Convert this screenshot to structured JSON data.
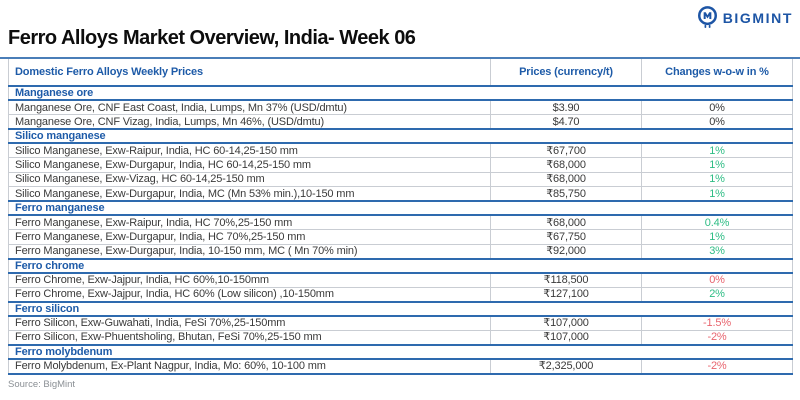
{
  "header": {
    "title": "Ferro Alloys Market Overview, India- Week 06",
    "brand": "BIGMINT"
  },
  "colors": {
    "accent_blue": "#1E5BA8",
    "logo_blue": "#1D55A5",
    "positive_green": "#2EBD85",
    "negative_red": "#E8646E",
    "neutral_text": "#3A3A3A"
  },
  "table": {
    "columns": [
      "Domestic Ferro Alloys Weekly Prices",
      "Prices (currency/t)",
      "Changes w-o-w in %"
    ],
    "sections": [
      {
        "name": "Manganese ore",
        "rows": [
          {
            "product": "Manganese Ore, CNF East Coast, India, Lumps, Mn 37% (USD/dmtu)",
            "price": "$3.90",
            "change": "0%",
            "change_color": "neutral"
          },
          {
            "product": "Manganese Ore, CNF Vizag, India, Lumps, Mn 46%, (USD/dmtu)",
            "price": "$4.70",
            "change": "0%",
            "change_color": "neutral"
          }
        ]
      },
      {
        "name": "Silico manganese",
        "rows": [
          {
            "product": "Silico Manganese, Exw-Raipur, India, HC 60-14,25-150 mm",
            "price": "₹67,700",
            "change": "1%",
            "change_color": "green"
          },
          {
            "product": "Silico Manganese, Exw-Durgapur, India, HC 60-14,25-150 mm",
            "price": "₹68,000",
            "change": "1%",
            "change_color": "green"
          },
          {
            "product": "Silico Manganese, Exw-Vizag, HC 60-14,25-150 mm",
            "price": "₹68,000",
            "change": "1%",
            "change_color": "green"
          },
          {
            "product": "Silico Manganese, Exw-Durgapur, India, MC (Mn 53% min.),10-150 mm",
            "price": "₹85,750",
            "change": "1%",
            "change_color": "green"
          }
        ]
      },
      {
        "name": "Ferro manganese",
        "rows": [
          {
            "product": "Ferro Manganese, Exw-Raipur, India, HC 70%,25-150 mm",
            "price": "₹68,000",
            "change": "0.4%",
            "change_color": "green"
          },
          {
            "product": "Ferro Manganese, Exw-Durgapur, India, HC 70%,25-150 mm",
            "price": "₹67,750",
            "change": "1%",
            "change_color": "green"
          },
          {
            "product": "Ferro Manganese, Exw-Durgapur, India, 10-150 mm, MC ( Mn 70% min)",
            "price": "₹92,000",
            "change": "3%",
            "change_color": "green"
          }
        ]
      },
      {
        "name": "Ferro chrome",
        "rows": [
          {
            "product": "Ferro Chrome, Exw-Jajpur, India, HC 60%,10-150mm",
            "price": "₹118,500",
            "change": "0%",
            "change_color": "red"
          },
          {
            "product": "Ferro Chrome, Exw-Jajpur, India, HC 60% (Low silicon) ,10-150mm",
            "price": "₹127,100",
            "change": "2%",
            "change_color": "green"
          }
        ]
      },
      {
        "name": "Ferro silicon",
        "rows": [
          {
            "product": "Ferro Silicon, Exw-Guwahati, India, FeSi 70%,25-150mm",
            "price": "₹107,000",
            "change": "-1.5%",
            "change_color": "red"
          },
          {
            "product": "Ferro Silicon, Exw-Phuentsholing, Bhutan, FeSi 70%,25-150 mm",
            "price": "₹107,000",
            "change": "-2%",
            "change_color": "red"
          }
        ]
      },
      {
        "name": "Ferro molybdenum",
        "rows": [
          {
            "product": "Ferro Molybdenum, Ex-Plant Nagpur, India, Mo: 60%, 10-100 mm",
            "price": "₹2,325,000",
            "change": "-2%",
            "change_color": "red"
          }
        ]
      }
    ]
  },
  "footer": {
    "source": "Source: BigMint"
  }
}
